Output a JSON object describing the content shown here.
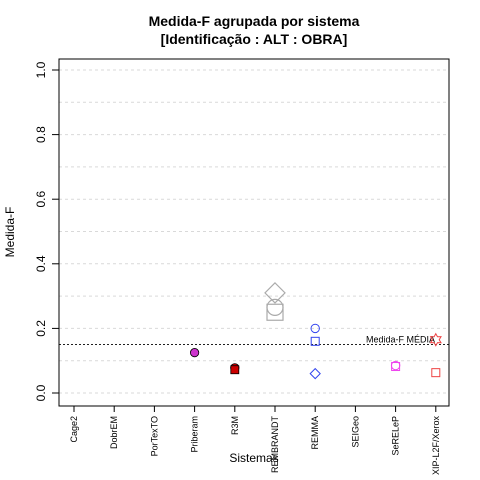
{
  "chart_data": {
    "type": "scatter",
    "title": "Medida-F agrupada por sistema",
    "subtitle": "[Identificação : ALT : OBRA]",
    "xlabel": "Sistemas",
    "ylabel": "Medida-F",
    "categories": [
      "Cage2",
      "DobrEM",
      "PorTexTO",
      "Priberam",
      "R3M",
      "REMBRANDT",
      "REMMA",
      "SEIGeo",
      "SeRELeP",
      "XIP-L2F/Xerox"
    ],
    "ylim": [
      0,
      1
    ],
    "yticks": [
      "0.0",
      "0.2",
      "0.4",
      "0.6",
      "0.8",
      "1.0"
    ],
    "grid": "horizontal dotted",
    "reference_line": {
      "value": 0.15,
      "label": "Medida-F MÉDIA"
    },
    "points": [
      {
        "category": "Priberam",
        "y": 0.125,
        "shape": "circle-filled",
        "color": "#cc33cc"
      },
      {
        "category": "R3M",
        "y": 0.078,
        "shape": "circle-filled",
        "color": "#cc0000"
      },
      {
        "category": "R3M",
        "y": 0.072,
        "shape": "square-filled",
        "color": "#cc0000"
      },
      {
        "category": "REMBRANDT",
        "y": 0.31,
        "shape": "diamond-large",
        "color": "#aaaaaa"
      },
      {
        "category": "REMBRANDT",
        "y": 0.265,
        "shape": "circle-large",
        "color": "#aaaaaa"
      },
      {
        "category": "REMBRANDT",
        "y": 0.25,
        "shape": "square-large",
        "color": "#aaaaaa"
      },
      {
        "category": "REMMA",
        "y": 0.2,
        "shape": "circle",
        "color": "#3344ee"
      },
      {
        "category": "REMMA",
        "y": 0.16,
        "shape": "square",
        "color": "#3344ee"
      },
      {
        "category": "REMMA",
        "y": 0.06,
        "shape": "diamond",
        "color": "#3344ee"
      },
      {
        "category": "SeRELeP",
        "y": 0.085,
        "shape": "circle",
        "color": "#ee44ee"
      },
      {
        "category": "SeRELeP",
        "y": 0.082,
        "shape": "square",
        "color": "#ee44ee"
      },
      {
        "category": "XIP-L2F/Xerox",
        "y": 0.165,
        "shape": "star",
        "color": "#ee4444"
      },
      {
        "category": "XIP-L2F/Xerox",
        "y": 0.063,
        "shape": "square",
        "color": "#ee4444"
      }
    ]
  }
}
